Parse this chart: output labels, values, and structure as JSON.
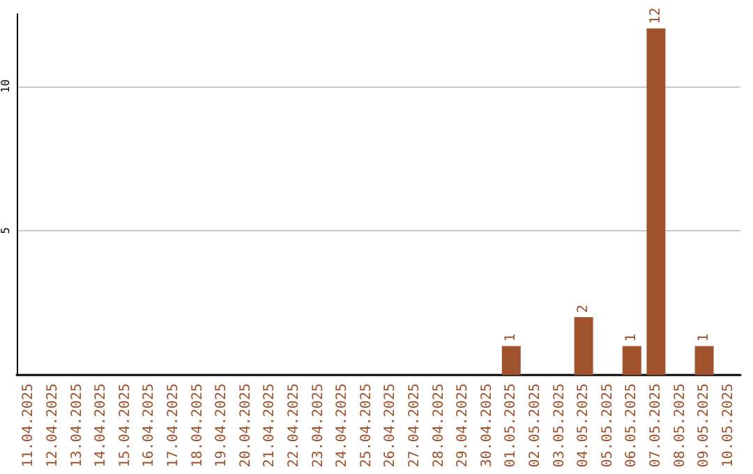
{
  "chart_data": {
    "type": "bar",
    "categories": [
      "11.04.2025",
      "12.04.2025",
      "13.04.2025",
      "14.04.2025",
      "15.04.2025",
      "16.04.2025",
      "17.04.2025",
      "18.04.2025",
      "19.04.2025",
      "20.04.2025",
      "21.04.2025",
      "22.04.2025",
      "23.04.2025",
      "24.04.2025",
      "25.04.2025",
      "26.04.2025",
      "27.04.2025",
      "28.04.2025",
      "29.04.2025",
      "30.04.2025",
      "01.05.2025",
      "02.05.2025",
      "03.05.2025",
      "04.05.2025",
      "05.05.2025",
      "06.05.2025",
      "07.05.2025",
      "08.05.2025",
      "09.05.2025",
      "10.05.2025"
    ],
    "values": [
      0,
      0,
      0,
      0,
      0,
      0,
      0,
      0,
      0,
      0,
      0,
      0,
      0,
      0,
      0,
      0,
      0,
      0,
      0,
      0,
      1,
      0,
      0,
      2,
      0,
      1,
      12,
      0,
      1,
      0
    ],
    "value_labels": [
      null,
      null,
      null,
      null,
      null,
      null,
      null,
      null,
      null,
      null,
      null,
      null,
      null,
      null,
      null,
      null,
      null,
      null,
      null,
      null,
      "1",
      null,
      null,
      "2",
      null,
      "1",
      "12",
      null,
      "1",
      null
    ],
    "color": "#a0522d",
    "ylim": [
      0,
      12.5
    ],
    "yticks": [
      5,
      10
    ],
    "grid": "y"
  }
}
